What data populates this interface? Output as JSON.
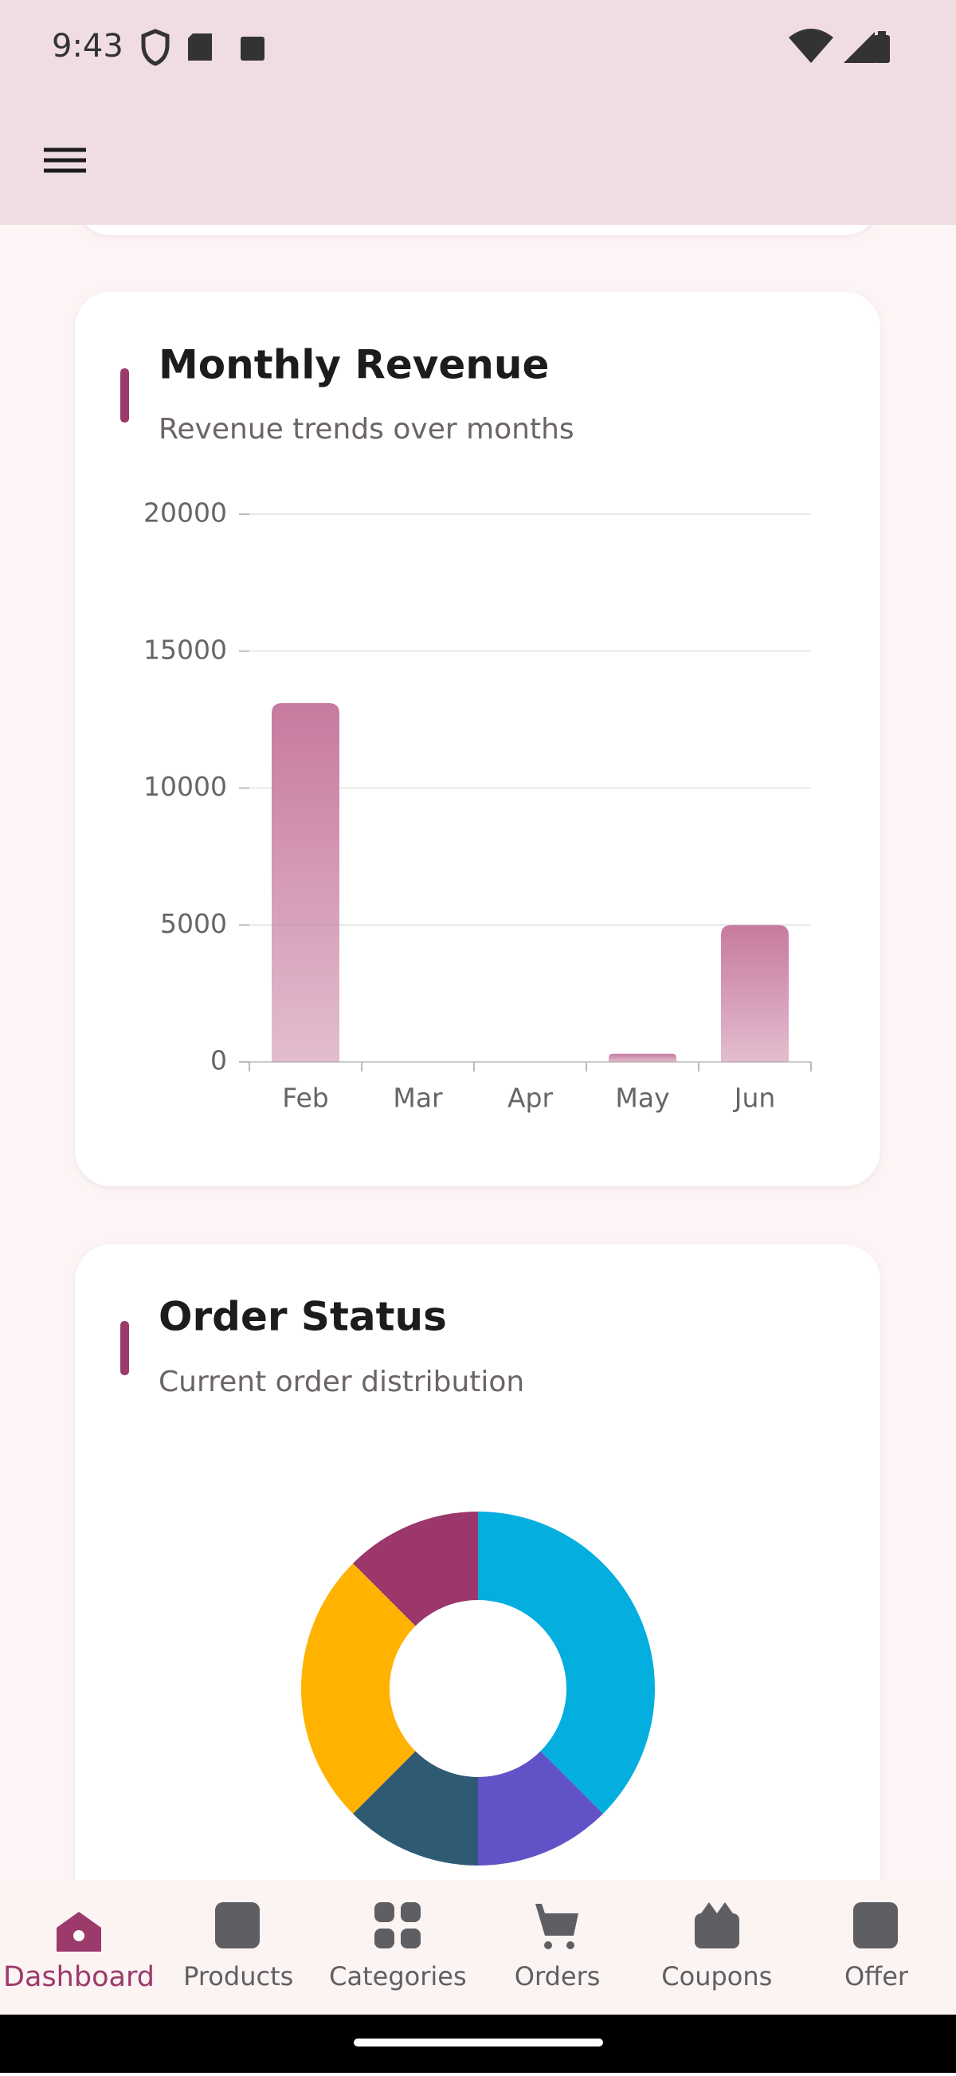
{
  "status_bar": {
    "time": "9:43"
  },
  "chart_data": [
    {
      "type": "bar",
      "title": "Monthly Revenue",
      "subtitle": "Revenue trends over months",
      "categories": [
        "Feb",
        "Mar",
        "Apr",
        "May",
        "Jun"
      ],
      "values": [
        13100,
        0,
        0,
        300,
        5000
      ],
      "color": "#c77a9f",
      "ylim": [
        0,
        20000
      ],
      "yticks": [
        0,
        5000,
        10000,
        15000,
        20000
      ],
      "grid": true
    },
    {
      "type": "pie",
      "title": "Order Status",
      "subtitle": "Current order distribution",
      "values": [
        3,
        1,
        1,
        2,
        1
      ],
      "colors": [
        "#04aedf",
        "#6153c7",
        "#2e5a74",
        "#ffb300",
        "#9b376a"
      ],
      "donut": true
    }
  ],
  "nav": [
    "Dashboard",
    "Products",
    "Categories",
    "Orders",
    "Coupons",
    "Offer"
  ]
}
